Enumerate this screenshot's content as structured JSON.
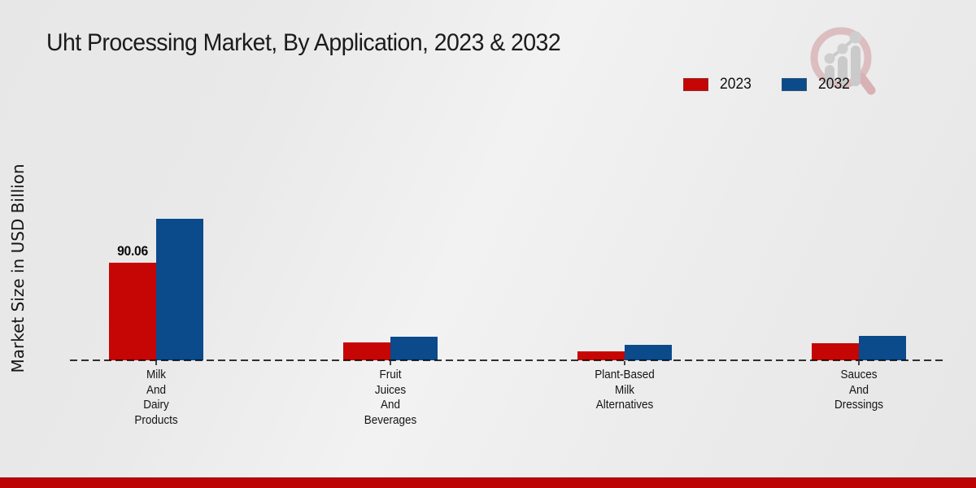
{
  "page": {
    "title": "Uht Processing Market, By Application, 2023 & 2032",
    "ylabel": "Market Size in USD Billion"
  },
  "legend": [
    {
      "label": "2023",
      "color": "#c60505"
    },
    {
      "label": "2032",
      "color": "#0b4a8b"
    }
  ],
  "logo": {
    "name": "market-research-magnifier-logo"
  },
  "footer": {
    "color": "#bd0404"
  },
  "chart_data": {
    "type": "bar",
    "title": "Uht Processing Market, By Application, 2023 & 2032",
    "xlabel": "",
    "ylabel": "Market Size in USD Billion",
    "categories": [
      "Milk And Dairy Products",
      "Fruit Juices And Beverages",
      "Plant-Based Milk Alternatives",
      "Sauces And Dressings"
    ],
    "category_label_lines": [
      [
        "Milk",
        "And",
        "Dairy",
        "Products"
      ],
      [
        "Fruit",
        "Juices",
        "And",
        "Beverages"
      ],
      [
        "Plant-Based",
        "Milk",
        "Alternatives"
      ],
      [
        "Sauces",
        "And",
        "Dressings"
      ]
    ],
    "series": [
      {
        "name": "2023",
        "color": "#c60505",
        "values": [
          90.06,
          16.5,
          8.3,
          15.8
        ]
      },
      {
        "name": "2032",
        "color": "#0b4a8b",
        "values": [
          130.5,
          21.9,
          14.3,
          22.5
        ]
      }
    ],
    "annotations": [
      {
        "series": "2023",
        "category_index": 0,
        "label": "90.06"
      }
    ],
    "ylim": [
      0,
      150
    ],
    "grid": false,
    "baseline_style": "dashed",
    "legend_position": "top-right"
  }
}
